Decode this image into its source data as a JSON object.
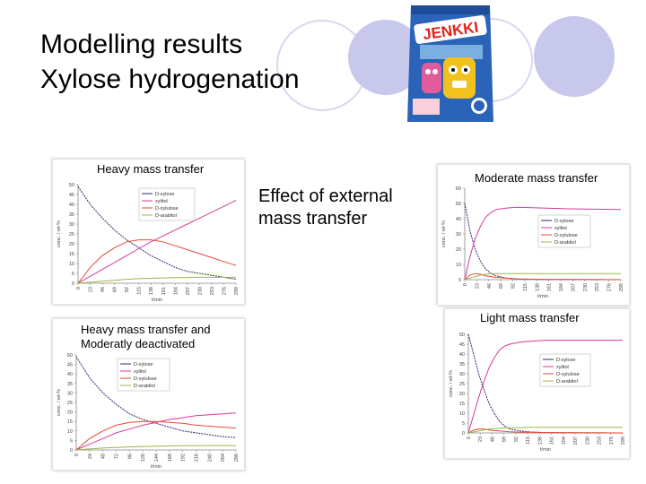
{
  "slide": {
    "title_line1": "Modelling results",
    "title_line2": "Xylose hydrogenation",
    "center_text_line1": "Effect of external",
    "center_text_line2": "mass transfer",
    "accent_circle_color": "#c8c8ec",
    "accent_circle_outline": "#d6d6f0"
  },
  "product_image": {
    "brand": "JENKKI",
    "colors": {
      "bag": "#2a63b8",
      "logo": "#e3231b",
      "light": "#9fd0f2"
    }
  },
  "panels": [
    {
      "label_line1": "Heavy mass transfer",
      "label_line2": ""
    },
    {
      "label_line1": "Moderate mass transfer",
      "label_line2": ""
    },
    {
      "label_line1": "Heavy mass transfer and",
      "label_line2": "Moderatly deactivated"
    },
    {
      "label_line1": "Light mass transfer",
      "label_line2": ""
    }
  ],
  "chart_data": [
    {
      "type": "line",
      "title": "Heavy mass transfer",
      "xlabel": "t/min",
      "ylabel": "conc. / wt-%",
      "xlim": [
        0,
        299
      ],
      "ylim": [
        0,
        50
      ],
      "x_ticks": [
        0,
        23,
        46,
        69,
        92,
        115,
        138,
        161,
        184,
        207,
        230,
        253,
        276,
        299
      ],
      "y_ticks": [
        0,
        5,
        10,
        15,
        20,
        25,
        30,
        35,
        40,
        45,
        50
      ],
      "legend_position": "top-right",
      "series": [
        {
          "name": "D-xylose",
          "color": "#2b2b6e",
          "x": [
            0,
            23,
            46,
            69,
            92,
            115,
            138,
            161,
            184,
            207,
            230,
            253,
            276,
            299
          ],
          "values": [
            49,
            40,
            33,
            27,
            22,
            18,
            14,
            11,
            8,
            6,
            5,
            4,
            3,
            2
          ]
        },
        {
          "name": "xylitol",
          "color": "#d63a9a",
          "x": [
            0,
            23,
            46,
            69,
            92,
            115,
            138,
            161,
            184,
            207,
            230,
            253,
            276,
            299
          ],
          "values": [
            0,
            3.5,
            7,
            10.5,
            14,
            17.5,
            21,
            24,
            27,
            30,
            33,
            36,
            39,
            42
          ]
        },
        {
          "name": "D-xylulose",
          "color": "#e64a2e",
          "x": [
            0,
            23,
            46,
            69,
            92,
            115,
            138,
            161,
            184,
            207,
            230,
            253,
            276,
            299
          ],
          "values": [
            0,
            8,
            14,
            18,
            21,
            22,
            22,
            21,
            19,
            17,
            15,
            13,
            11,
            9
          ]
        },
        {
          "name": "D-arabitol",
          "color": "#9ab84a",
          "x": [
            0,
            23,
            46,
            69,
            92,
            115,
            138,
            161,
            184,
            207,
            230,
            253,
            276,
            299
          ],
          "values": [
            0,
            0.5,
            1,
            1.5,
            2,
            2.3,
            2.5,
            2.7,
            2.8,
            2.9,
            3,
            3,
            3,
            3
          ]
        }
      ]
    },
    {
      "type": "line",
      "title": "Moderate mass transfer",
      "xlabel": "t/min",
      "ylabel": "conc. / wt-%",
      "xlim": [
        0,
        299
      ],
      "ylim": [
        0,
        60
      ],
      "x_ticks": [
        0,
        23,
        46,
        69,
        92,
        115,
        138,
        161,
        184,
        207,
        230,
        253,
        276,
        299
      ],
      "y_ticks": [
        0,
        10,
        20,
        30,
        40,
        50,
        60
      ],
      "legend_position": "right",
      "series": [
        {
          "name": "D-xylose",
          "color": "#2b2b6e",
          "x": [
            0,
            10,
            20,
            30,
            40,
            50,
            60,
            80,
            100,
            150,
            200,
            299
          ],
          "values": [
            50,
            32,
            20,
            12,
            7,
            4,
            2.5,
            1,
            0.5,
            0.2,
            0.1,
            0
          ]
        },
        {
          "name": "xylitol",
          "color": "#d63a9a",
          "x": [
            0,
            10,
            20,
            30,
            40,
            50,
            60,
            80,
            100,
            150,
            200,
            299
          ],
          "values": [
            0,
            15,
            27,
            35,
            41,
            44,
            46,
            47,
            47.5,
            47,
            46.5,
            46
          ]
        },
        {
          "name": "D-xylulose",
          "color": "#e64a2e",
          "x": [
            0,
            10,
            20,
            30,
            40,
            50,
            60,
            80,
            100,
            150,
            200,
            299
          ],
          "values": [
            0,
            3,
            4,
            3.5,
            2.5,
            2,
            1.5,
            1,
            0.5,
            0.2,
            0.1,
            0
          ]
        },
        {
          "name": "D-arabitol",
          "color": "#9ab84a",
          "x": [
            0,
            10,
            20,
            30,
            40,
            50,
            60,
            80,
            100,
            150,
            200,
            299
          ],
          "values": [
            0,
            1,
            2,
            3,
            3.5,
            4,
            4,
            4,
            4,
            4,
            4,
            4
          ]
        }
      ]
    },
    {
      "type": "line",
      "title": "Heavy mass transfer and Moderatly deactivated",
      "xlabel": "t/min",
      "ylabel": "conc. / wt-%",
      "xlim": [
        0,
        288
      ],
      "ylim": [
        0,
        50
      ],
      "x_ticks": [
        0,
        24,
        48,
        72,
        96,
        120,
        144,
        168,
        192,
        216,
        240,
        264,
        288
      ],
      "y_ticks": [
        0,
        5,
        10,
        15,
        20,
        25,
        30,
        35,
        40,
        45,
        50
      ],
      "legend_position": "top-right",
      "series": [
        {
          "name": "D-xylose",
          "color": "#2b2b6e",
          "x": [
            0,
            24,
            48,
            72,
            96,
            120,
            144,
            168,
            192,
            216,
            240,
            264,
            288
          ],
          "values": [
            49,
            38,
            30,
            24,
            19,
            16,
            14,
            12,
            10,
            9,
            8,
            7,
            6.5
          ]
        },
        {
          "name": "xylitol",
          "color": "#d63a9a",
          "x": [
            0,
            24,
            48,
            72,
            96,
            120,
            144,
            168,
            192,
            216,
            240,
            264,
            288
          ],
          "values": [
            0,
            3,
            6,
            9,
            11,
            13,
            14.5,
            16,
            17,
            18,
            18.5,
            19,
            19.5
          ]
        },
        {
          "name": "D-xylulose",
          "color": "#e64a2e",
          "x": [
            0,
            24,
            48,
            72,
            96,
            120,
            144,
            168,
            192,
            216,
            240,
            264,
            288
          ],
          "values": [
            0,
            6,
            10,
            13,
            14.5,
            15,
            15,
            14.5,
            14,
            13,
            12.5,
            12,
            11.5
          ]
        },
        {
          "name": "D-arabitol",
          "color": "#9ab84a",
          "x": [
            0,
            24,
            48,
            72,
            96,
            120,
            144,
            168,
            192,
            216,
            240,
            264,
            288
          ],
          "values": [
            0,
            0.5,
            1,
            1.3,
            1.6,
            1.8,
            2,
            2.1,
            2.2,
            2.2,
            2.3,
            2.3,
            2.3
          ]
        }
      ]
    },
    {
      "type": "line",
      "title": "Light mass transfer",
      "xlabel": "t/min",
      "ylabel": "conc. / wt-%",
      "xlim": [
        0,
        299
      ],
      "ylim": [
        0,
        50
      ],
      "x_ticks": [
        0,
        23,
        46,
        69,
        92,
        115,
        138,
        161,
        184,
        207,
        230,
        253,
        276,
        299
      ],
      "y_ticks": [
        0,
        5,
        10,
        15,
        20,
        25,
        30,
        35,
        40,
        45,
        50
      ],
      "legend_position": "right",
      "series": [
        {
          "name": "D-xylose",
          "color": "#2b2b6e",
          "x": [
            0,
            10,
            20,
            30,
            40,
            50,
            60,
            70,
            80,
            100,
            120,
            150,
            200,
            299
          ],
          "values": [
            50,
            40,
            30,
            22,
            15,
            10,
            6,
            3.5,
            2,
            1,
            0.5,
            0.2,
            0.1,
            0
          ]
        },
        {
          "name": "xylitol",
          "color": "#d63a9a",
          "x": [
            0,
            10,
            20,
            30,
            40,
            50,
            60,
            70,
            80,
            100,
            120,
            150,
            200,
            299
          ],
          "values": [
            0,
            9,
            18,
            26,
            33,
            38,
            42,
            44,
            45,
            46,
            46.5,
            47,
            47,
            47
          ]
        },
        {
          "name": "D-xylulose",
          "color": "#e64a2e",
          "x": [
            0,
            10,
            20,
            30,
            40,
            50,
            60,
            70,
            80,
            100,
            120,
            150,
            200,
            299
          ],
          "values": [
            0,
            1.5,
            2,
            2,
            1.5,
            1.2,
            1,
            0.8,
            0.6,
            0.4,
            0.3,
            0.2,
            0.1,
            0
          ]
        },
        {
          "name": "D-arabitol",
          "color": "#9ab84a",
          "x": [
            0,
            10,
            20,
            30,
            40,
            50,
            60,
            70,
            80,
            100,
            120,
            150,
            200,
            299
          ],
          "values": [
            0,
            0.5,
            1,
            1.5,
            2,
            2.2,
            2.4,
            2.5,
            2.6,
            2.7,
            2.8,
            2.8,
            2.8,
            2.8
          ]
        }
      ]
    }
  ]
}
